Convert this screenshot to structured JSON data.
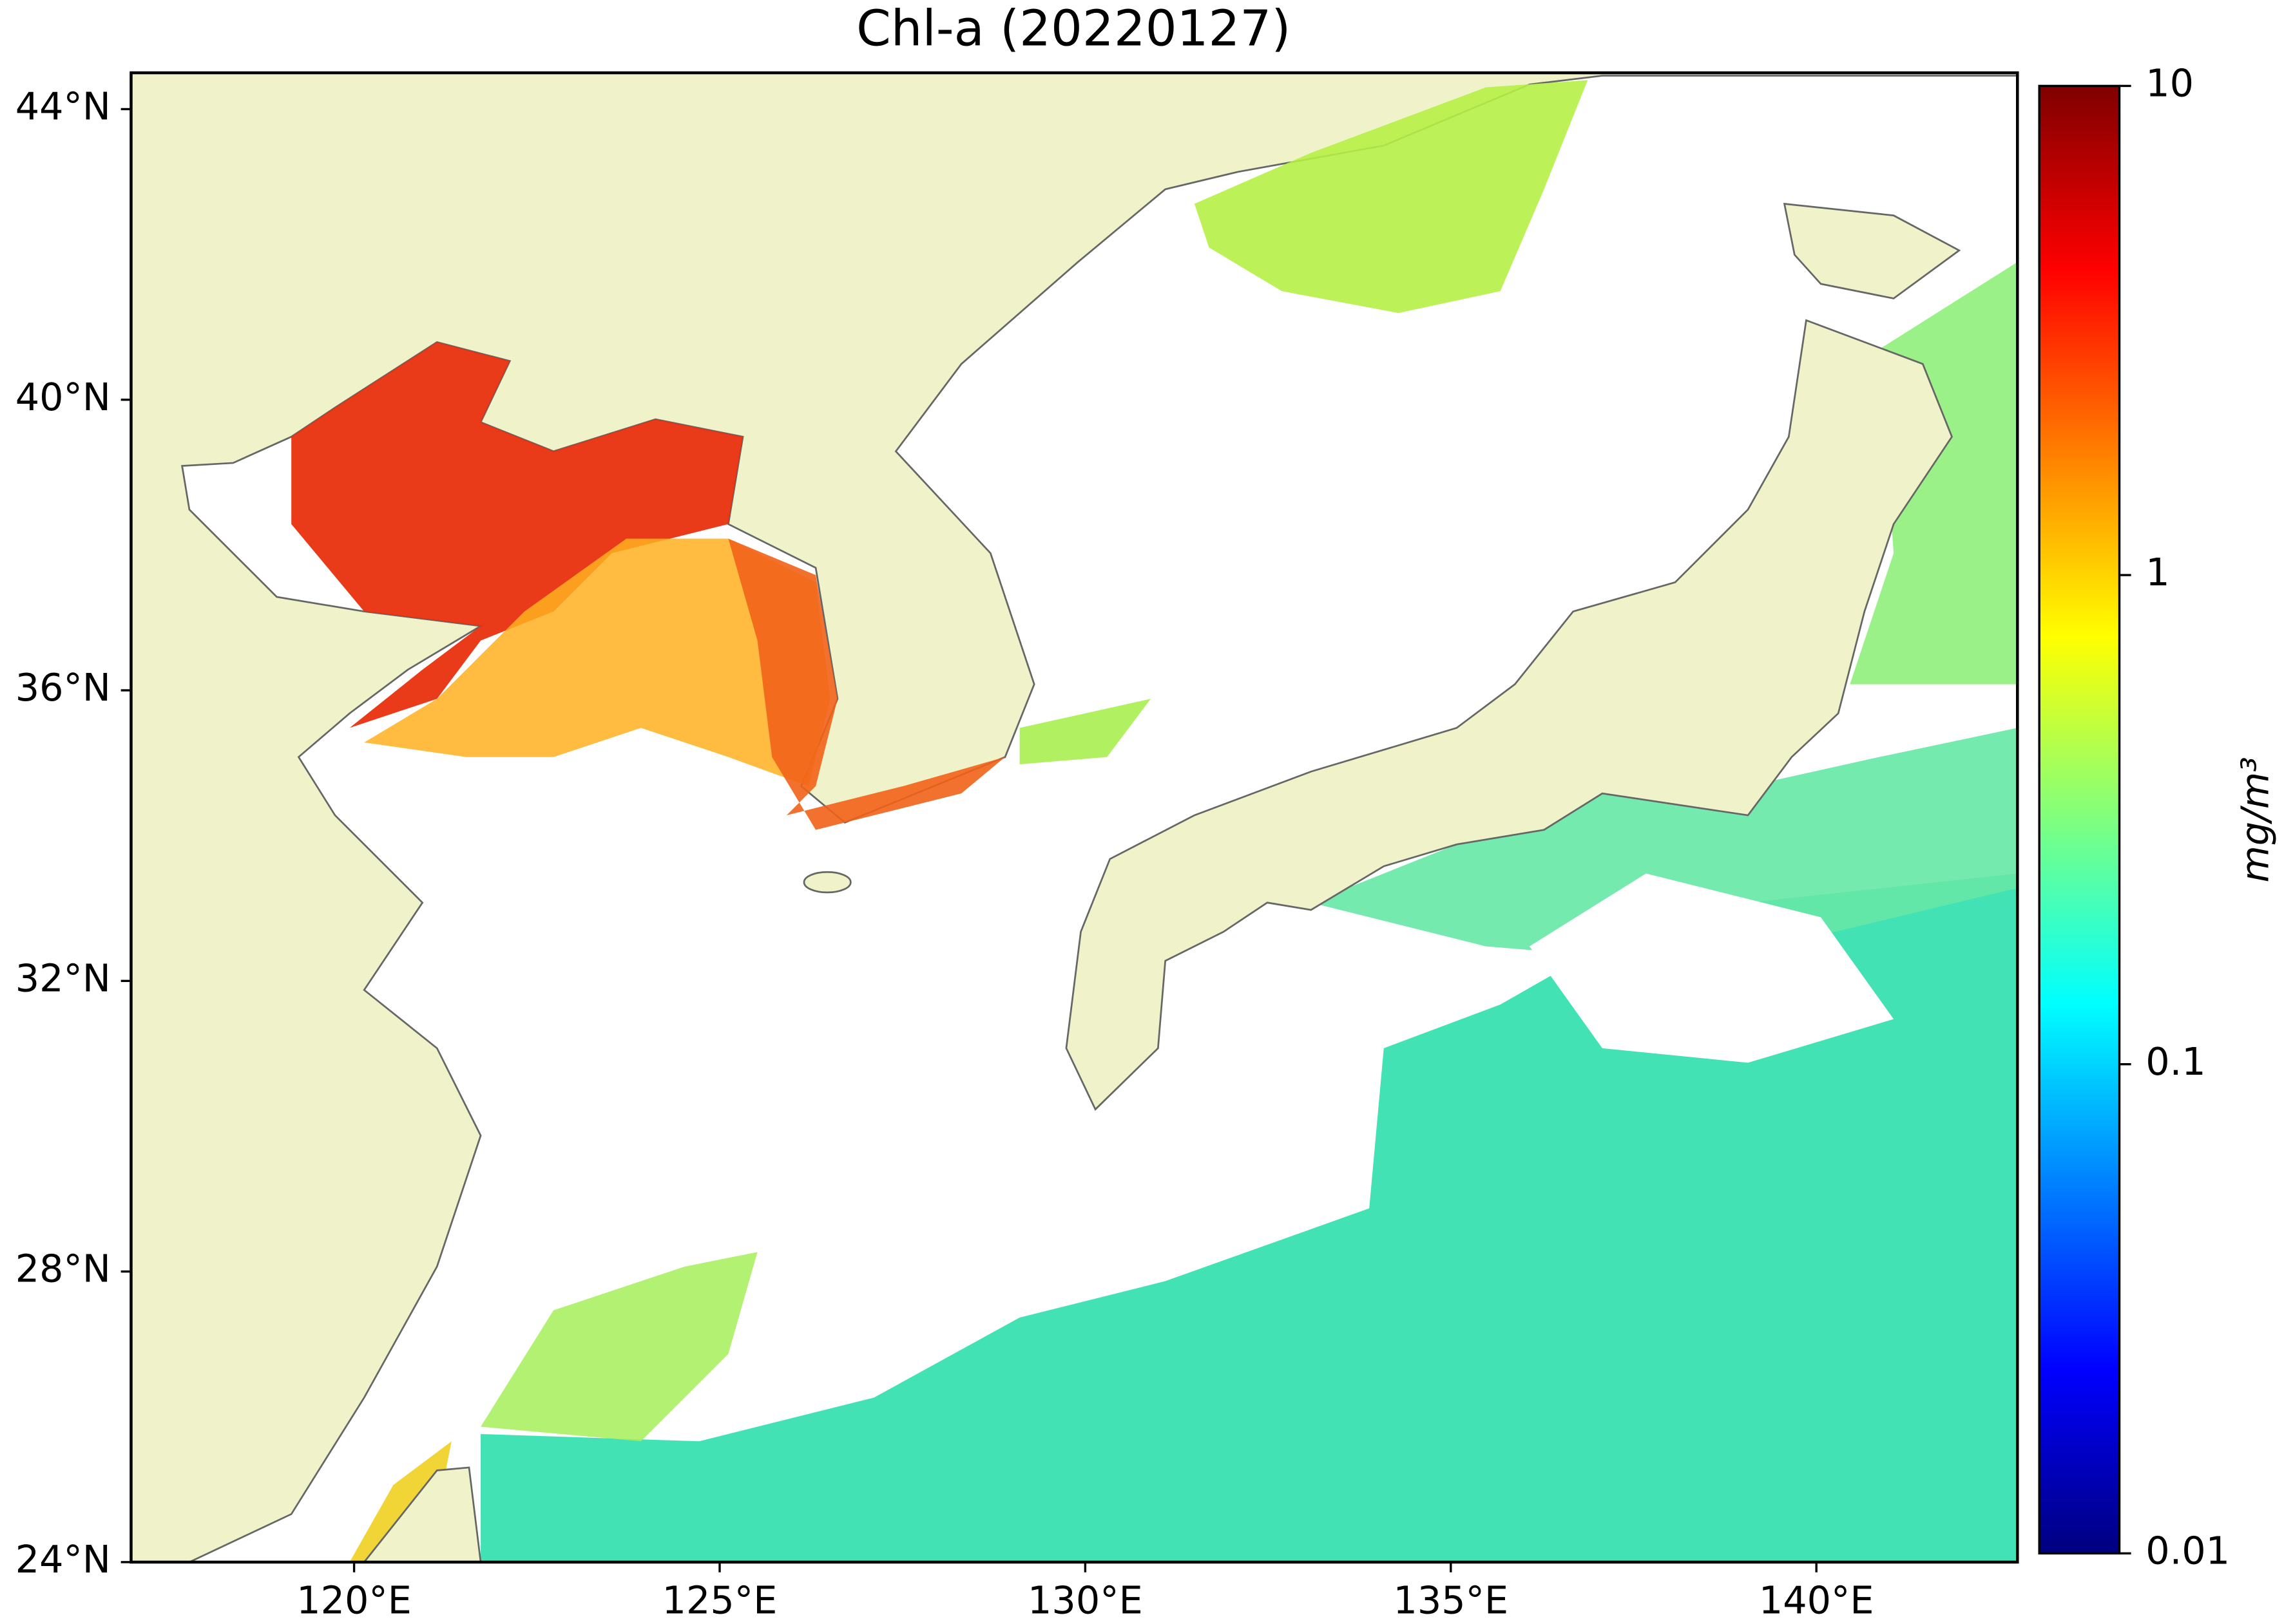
{
  "title": "Chl-a (20220127)",
  "map": {
    "xlim": [
      116.95,
      142.75
    ],
    "ylim": [
      24,
      44.5
    ],
    "xticks": [
      {
        "value": 120,
        "label": "120°E"
      },
      {
        "value": 125,
        "label": "125°E"
      },
      {
        "value": 130,
        "label": "130°E"
      },
      {
        "value": 135,
        "label": "135°E"
      },
      {
        "value": 140,
        "label": "140°E"
      }
    ],
    "yticks": [
      {
        "value": 24,
        "label": "24°N"
      },
      {
        "value": 28,
        "label": "28°N"
      },
      {
        "value": 32,
        "label": "32°N"
      },
      {
        "value": 36,
        "label": "36°N"
      },
      {
        "value": 40,
        "label": "40°N"
      },
      {
        "value": 44,
        "label": "44°N"
      }
    ]
  },
  "colorbar": {
    "label": "mg/m³",
    "scale": "log",
    "lim": [
      0.01,
      10
    ],
    "ticks": [
      0.01,
      0.1,
      1,
      10
    ],
    "colormap": [
      "#00007f",
      "#0000ff",
      "#007fff",
      "#00ffff",
      "#7fff7f",
      "#ffff00",
      "#ff7f00",
      "#ff0000",
      "#7f0000"
    ]
  }
}
